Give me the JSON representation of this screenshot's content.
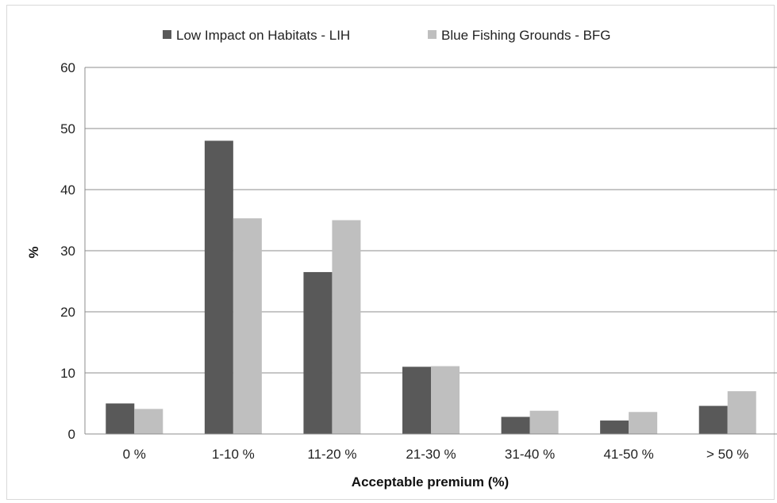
{
  "chart_data": {
    "type": "bar",
    "categories": [
      "0 %",
      "1-10 %",
      "11-20 %",
      "21-30 %",
      "31-40 %",
      "41-50 %",
      "> 50 %"
    ],
    "series": [
      {
        "name": "Low Impact on Habitats - LIH",
        "values": [
          5.0,
          48.0,
          26.5,
          11.0,
          2.8,
          2.2,
          4.6
        ],
        "color": "#595959"
      },
      {
        "name": "Blue Fishing Grounds - BFG",
        "values": [
          4.1,
          35.3,
          35.0,
          11.1,
          3.8,
          3.6,
          7.0
        ],
        "color": "#bfbfbf"
      }
    ],
    "xlabel": "Acceptable premium (%)",
    "ylabel": "%",
    "ylim": [
      0,
      60
    ],
    "yticks": [
      "0",
      "10",
      "20",
      "30",
      "40",
      "50",
      "60"
    ],
    "grid": true,
    "legend_position": "top"
  }
}
